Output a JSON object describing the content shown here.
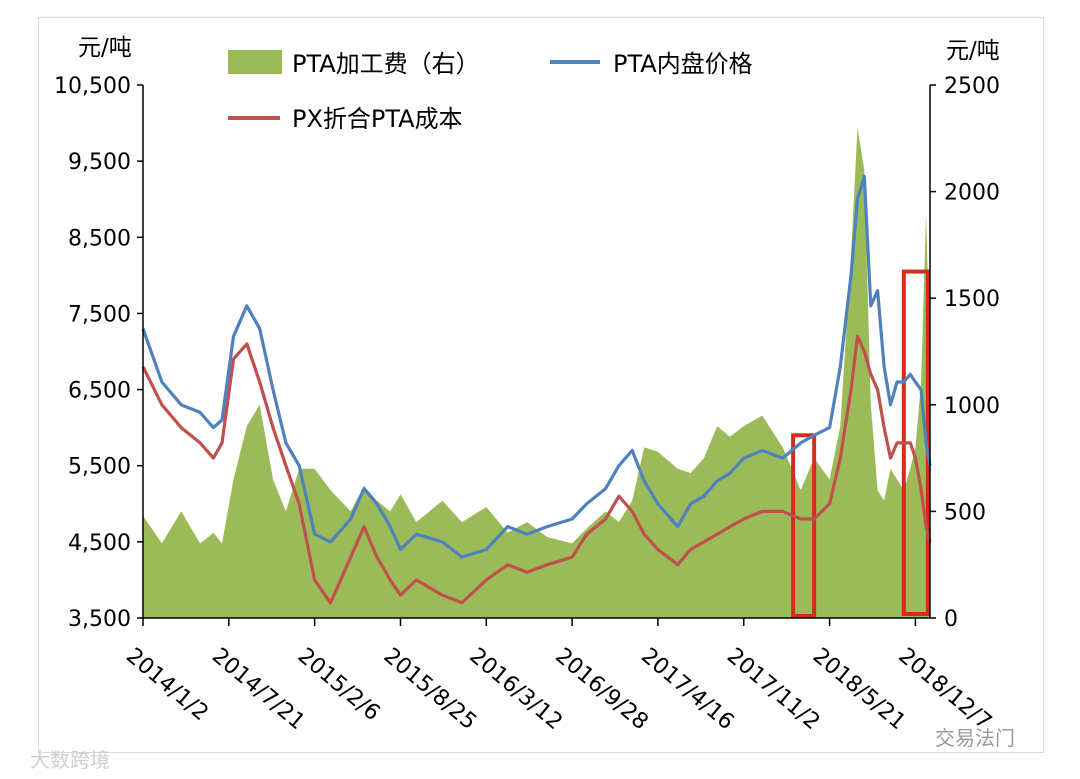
{
  "chart_data": {
    "type": "line",
    "left_axis": {
      "unit": "元/吨",
      "ticks": [
        "10,500",
        "9,500",
        "8,500",
        "7,500",
        "6,500",
        "5,500",
        "4,500",
        "3,500"
      ],
      "ylim": [
        3500,
        10500
      ]
    },
    "right_axis": {
      "unit": "元/吨",
      "ticks": [
        "2500",
        "2000",
        "1500",
        "1000",
        "500",
        "0"
      ],
      "ylim": [
        0,
        2500
      ]
    },
    "x_ticks": [
      "2014/1/2",
      "2014/7/21",
      "2015/2/6",
      "2015/8/25",
      "2016/3/12",
      "2016/9/28",
      "2017/4/16",
      "2017/11/2",
      "2018/5/21",
      "2018/12/7"
    ],
    "legend": [
      "PTA加工费（右）",
      "PTA内盘价格",
      "PX折合PTA成本"
    ],
    "colors": {
      "fee": "#9bbb59",
      "price": "#4f81bd",
      "cost": "#c0504d",
      "highlight": "#d62b1e"
    },
    "x": [
      "2014-01-02",
      "2014-02-15",
      "2014-04-01",
      "2014-05-15",
      "2014-06-15",
      "2014-07-05",
      "2014-08-01",
      "2014-09-01",
      "2014-10-01",
      "2014-11-01",
      "2014-12-01",
      "2015-01-01",
      "2015-02-06",
      "2015-03-15",
      "2015-05-01",
      "2015-06-01",
      "2015-07-01",
      "2015-08-01",
      "2015-08-25",
      "2015-10-01",
      "2015-12-01",
      "2016-01-15",
      "2016-03-12",
      "2016-05-01",
      "2016-06-15",
      "2016-08-01",
      "2016-09-28",
      "2016-11-01",
      "2016-12-15",
      "2017-01-15",
      "2017-02-15",
      "2017-03-15",
      "2017-04-16",
      "2017-06-01",
      "2017-07-01",
      "2017-08-01",
      "2017-09-01",
      "2017-10-01",
      "2017-11-02",
      "2017-12-15",
      "2018-02-01",
      "2018-03-15",
      "2018-04-15",
      "2018-05-21",
      "2018-06-15",
      "2018-07-10",
      "2018-07-25",
      "2018-08-10",
      "2018-08-25",
      "2018-09-10",
      "2018-09-25",
      "2018-10-10",
      "2018-10-25",
      "2018-11-10",
      "2018-11-25",
      "2018-12-07",
      "2018-12-20",
      "2019-01-01",
      "2019-01-10"
    ],
    "series": [
      {
        "name": "PTA内盘价格",
        "axis": "left",
        "values": [
          7300,
          6600,
          6300,
          6200,
          6000,
          6100,
          7200,
          7600,
          7300,
          6500,
          5800,
          5500,
          4600,
          4500,
          4800,
          5200,
          5000,
          4700,
          4400,
          4600,
          4500,
          4300,
          4400,
          4700,
          4600,
          4700,
          4800,
          5000,
          5200,
          5500,
          5700,
          5300,
          5000,
          4700,
          5000,
          5100,
          5300,
          5400,
          5600,
          5700,
          5600,
          5800,
          5900,
          6000,
          6800,
          8000,
          9000,
          9300,
          7600,
          7800,
          6800,
          6300,
          6600,
          6600,
          6700,
          6600,
          6500,
          5800,
          5500
        ]
      },
      {
        "name": "PX折合PTA成本",
        "axis": "left",
        "values": [
          6800,
          6300,
          6000,
          5800,
          5600,
          5800,
          6900,
          7100,
          6600,
          6000,
          5500,
          5000,
          4000,
          3700,
          4300,
          4700,
          4300,
          4000,
          3800,
          4000,
          3800,
          3700,
          4000,
          4200,
          4100,
          4200,
          4300,
          4600,
          4800,
          5100,
          4900,
          4600,
          4400,
          4200,
          4400,
          4500,
          4600,
          4700,
          4800,
          4900,
          4900,
          4800,
          4800,
          5000,
          5600,
          6500,
          7200,
          7000,
          6700,
          6500,
          6000,
          5600,
          5800,
          5800,
          5800,
          5600,
          5200,
          4700,
          4500
        ]
      },
      {
        "name": "PTA加工费（右）",
        "axis": "right",
        "type": "area",
        "values": [
          480,
          350,
          500,
          350,
          400,
          350,
          650,
          900,
          1000,
          650,
          500,
          700,
          700,
          600,
          500,
          620,
          550,
          500,
          580,
          450,
          550,
          450,
          520,
          400,
          450,
          380,
          350,
          420,
          500,
          450,
          550,
          800,
          780,
          700,
          680,
          750,
          900,
          850,
          900,
          950,
          800,
          600,
          750,
          650,
          900,
          1700,
          2300,
          2100,
          1000,
          600,
          550,
          700,
          650,
          600,
          700,
          800,
          1100,
          1900,
          1200
        ]
      }
    ]
  },
  "watermarks": {
    "left": "大数跨境",
    "right": "交易法门"
  }
}
